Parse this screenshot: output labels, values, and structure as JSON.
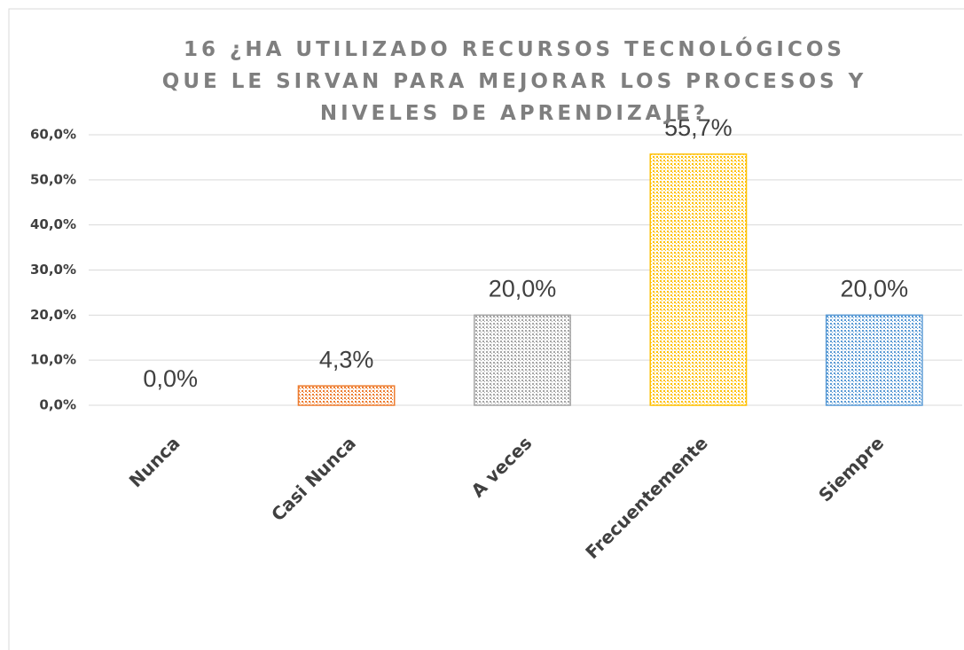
{
  "chart_data": {
    "type": "bar",
    "title": "16 ¿HA UTILIZADO RECURSOS TECNOLÓGICOS QUE LE SIRVAN PARA MEJORAR LOS PROCESOS Y NIVELES DE APRENDIZAJE?",
    "categories": [
      "Nunca",
      "Casi Nunca",
      "A veces",
      "Frecuentemente",
      "Siempre"
    ],
    "values": [
      0,
      4.3,
      20,
      55.7,
      20
    ],
    "value_labels": [
      "0,0%",
      "4,3%",
      "20,0%",
      "55,7%",
      "20,0%"
    ],
    "colors": [
      "#4472c4",
      "#ed7d31",
      "#a5a5a5",
      "#ffc000",
      "#5b9bd5"
    ],
    "ylim": [
      0,
      60
    ],
    "yticks": [
      {
        "value": 0,
        "label": "0,0%"
      },
      {
        "value": 10,
        "label": "10,0%"
      },
      {
        "value": 20,
        "label": "20,0%"
      },
      {
        "value": 30,
        "label": "30,0%"
      },
      {
        "value": 40,
        "label": "40,0%"
      },
      {
        "value": 50,
        "label": "50,0%"
      },
      {
        "value": 60,
        "label": "60,0%"
      }
    ],
    "grid": true
  }
}
